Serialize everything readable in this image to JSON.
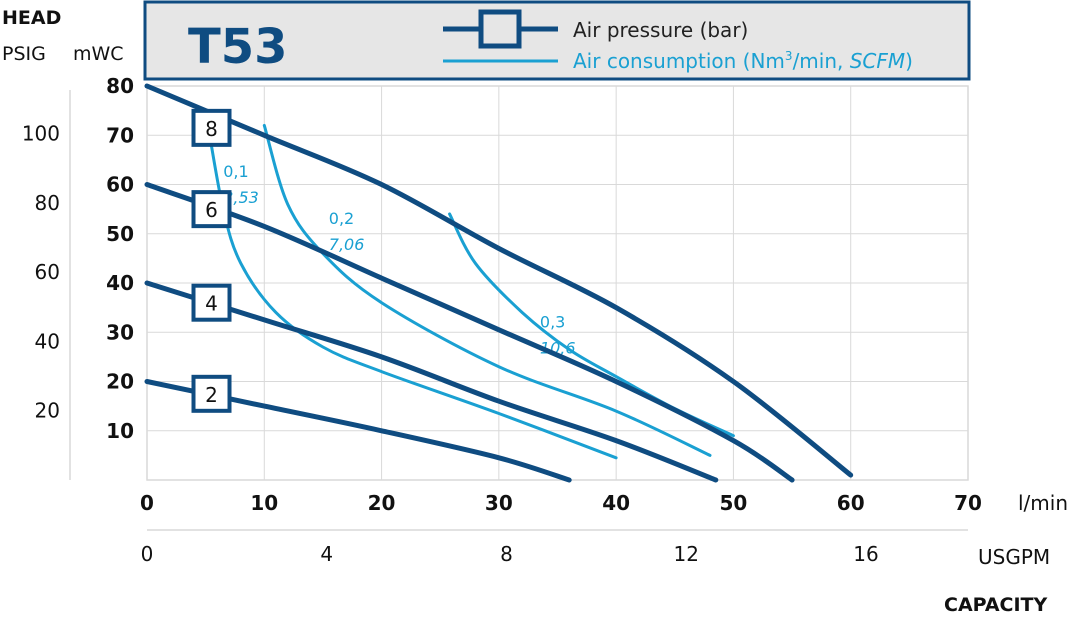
{
  "chart_data": {
    "type": "line",
    "title": "T53",
    "head_label": "HEAD",
    "psig_label": "PSIG",
    "mwc_label": "mWC",
    "x_unit": "l/min",
    "x2_unit": "USGPM",
    "xlabel": "CAPACITY",
    "xlim": [
      0,
      70
    ],
    "ylim": [
      0,
      80
    ],
    "x_ticks": [
      "0",
      "10",
      "20",
      "30",
      "40",
      "50",
      "60",
      "70"
    ],
    "x2_ticks": [
      {
        "value": 0,
        "label": "0"
      },
      {
        "value": 4,
        "label": "4"
      },
      {
        "value": 8,
        "label": "8"
      },
      {
        "value": 12,
        "label": "12"
      },
      {
        "value": 16,
        "label": "16"
      }
    ],
    "y_ticks": [
      {
        "value": 10,
        "label": "10"
      },
      {
        "value": 20,
        "label": "20"
      },
      {
        "value": 30,
        "label": "30"
      },
      {
        "value": 40,
        "label": "40"
      },
      {
        "value": 50,
        "label": "50"
      },
      {
        "value": 60,
        "label": "60"
      },
      {
        "value": 70,
        "label": "70"
      },
      {
        "value": 80,
        "label": "80"
      }
    ],
    "psig_ticks": [
      {
        "value": 20,
        "label": "20"
      },
      {
        "value": 40,
        "label": "40"
      },
      {
        "value": 60,
        "label": "60"
      },
      {
        "value": 80,
        "label": "80"
      },
      {
        "value": 100,
        "label": "100"
      }
    ],
    "legend": {
      "pressure": "Air pressure (bar)",
      "consumption_prefix": "Air consumption (Nm",
      "consumption_sup": "3",
      "consumption_mid": "/min, ",
      "consumption_italic": "SCFM",
      "consumption_suffix": ")"
    },
    "colors": {
      "pressure": "#0f4c81",
      "consumption": "#1aa0d2",
      "grid": "#d9d9d9",
      "header_bg": "#e6e6e6",
      "axis_text": "#111111"
    },
    "pressure_series": [
      {
        "name": "8",
        "label_at": [
          5.5,
          71.5
        ],
        "points": [
          [
            0,
            80
          ],
          [
            10,
            70
          ],
          [
            20,
            60
          ],
          [
            30,
            47
          ],
          [
            40,
            35
          ],
          [
            50,
            20
          ],
          [
            60,
            1
          ]
        ]
      },
      {
        "name": "6",
        "label_at": [
          5.5,
          55
        ],
        "points": [
          [
            0,
            60
          ],
          [
            10,
            51.5
          ],
          [
            20,
            41
          ],
          [
            30,
            30.5
          ],
          [
            40,
            20
          ],
          [
            50,
            8
          ],
          [
            55,
            0
          ]
        ]
      },
      {
        "name": "4",
        "label_at": [
          5.5,
          36
        ],
        "points": [
          [
            0,
            40
          ],
          [
            10,
            32.5
          ],
          [
            20,
            25
          ],
          [
            30,
            16
          ],
          [
            40,
            8
          ],
          [
            48.5,
            0
          ]
        ]
      },
      {
        "name": "2",
        "label_at": [
          5.5,
          17.5
        ],
        "points": [
          [
            0,
            20
          ],
          [
            10,
            15
          ],
          [
            20,
            10
          ],
          [
            30,
            4.5
          ],
          [
            36,
            0
          ]
        ]
      }
    ],
    "consumption_series": [
      {
        "label_top": "0,1",
        "label_bottom": "3,53",
        "label_at": [
          6.5,
          61.5
        ],
        "points": [
          [
            5.2,
            72
          ],
          [
            6.5,
            55
          ],
          [
            8,
            44
          ],
          [
            11,
            34
          ],
          [
            15,
            27
          ],
          [
            20,
            22
          ],
          [
            30,
            13.5
          ],
          [
            40,
            4.5
          ]
        ]
      },
      {
        "label_top": "0,2",
        "label_bottom": "7,06",
        "label_at": [
          15.5,
          52
        ],
        "points": [
          [
            10,
            72
          ],
          [
            12,
            56
          ],
          [
            15,
            46
          ],
          [
            20,
            36
          ],
          [
            30,
            23
          ],
          [
            40,
            14
          ],
          [
            48,
            5
          ]
        ]
      },
      {
        "label_top": "0,3",
        "label_bottom": "10,6",
        "label_at": [
          33.5,
          31
        ],
        "points": [
          [
            25.8,
            54
          ],
          [
            28,
            44
          ],
          [
            32,
            34
          ],
          [
            36,
            26.5
          ],
          [
            40,
            21
          ],
          [
            45,
            14.5
          ],
          [
            50,
            9
          ]
        ]
      }
    ]
  }
}
